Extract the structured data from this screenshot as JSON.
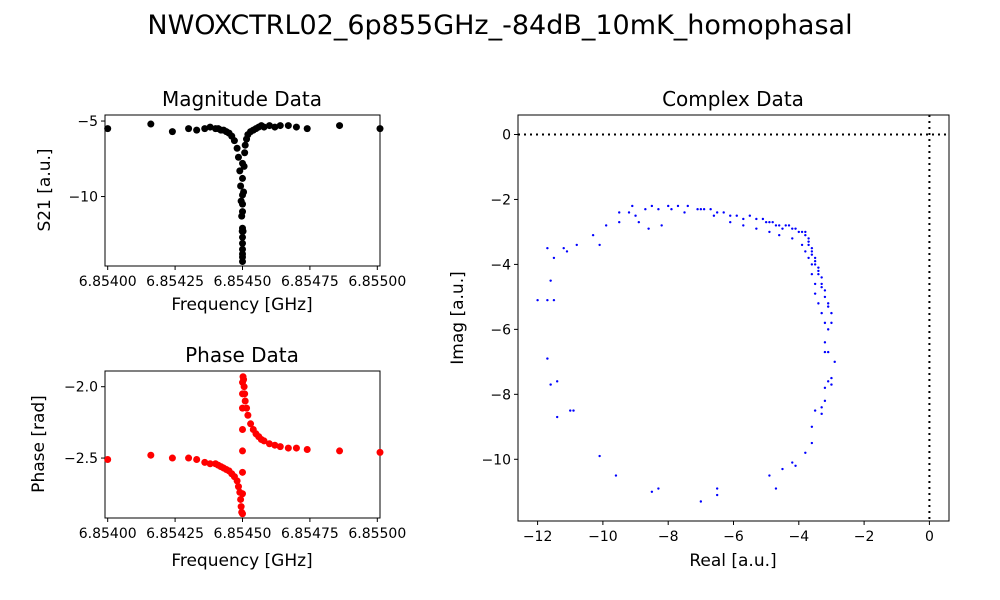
{
  "figure": {
    "title": "NWOXCTRL02_6p855GHz_-84dB_10mK_homophasal"
  },
  "chart_data": [
    {
      "type": "scatter",
      "title": "Magnitude Data",
      "xlabel": "Frequency [GHz]",
      "ylabel": "S21 [a.u.]",
      "color": "#000000",
      "xlim": [
        6.85399,
        6.85501
      ],
      "ylim": [
        -14.6,
        -4.6
      ],
      "xticks": [
        6.854,
        6.85425,
        6.8545,
        6.85475,
        6.855
      ],
      "xtick_labels": [
        "6.85400",
        "6.85425",
        "6.85450",
        "6.85475",
        "6.85500"
      ],
      "yticks": [
        -5,
        -10
      ],
      "ytick_labels": [
        "−5",
        "−10"
      ],
      "x": [
        6.854,
        6.85416,
        6.85424,
        6.8543,
        6.85433,
        6.85436,
        6.85438,
        6.8544,
        6.85441,
        6.85442,
        6.85443,
        6.85444,
        6.85445,
        6.85446,
        6.85447,
        6.85448,
        6.854485,
        6.85449,
        6.854493,
        6.854495,
        6.854497,
        6.854499,
        6.8545,
        6.8545,
        6.8545,
        6.8545,
        6.8545,
        6.8545,
        6.8545,
        6.8545,
        6.8545,
        6.8545,
        6.8545,
        6.8545,
        6.854502,
        6.854504,
        6.854506,
        6.854508,
        6.85451,
        6.854515,
        6.85452,
        6.85453,
        6.85454,
        6.85455,
        6.85456,
        6.85457,
        6.85458,
        6.8546,
        6.85462,
        6.85464,
        6.85467,
        6.8547,
        6.85474,
        6.85486,
        6.85501
      ],
      "y": [
        -5.5,
        -5.2,
        -5.7,
        -5.5,
        -5.6,
        -5.5,
        -5.4,
        -5.5,
        -5.5,
        -5.6,
        -5.6,
        -5.7,
        -5.8,
        -6.0,
        -6.3,
        -6.8,
        -7.4,
        -8.3,
        -9.3,
        -10.3,
        -11.3,
        -12.3,
        -13.5,
        -14.3,
        -14.0,
        -13.1,
        -12.1,
        -11.0,
        -9.9,
        -8.8,
        -7.8,
        -10.5,
        -12.7,
        -13.8,
        -12.3,
        -9.7,
        -8.0,
        -7.1,
        -6.6,
        -6.2,
        -5.9,
        -5.7,
        -5.6,
        -5.5,
        -5.4,
        -5.3,
        -5.4,
        -5.3,
        -5.4,
        -5.3,
        -5.3,
        -5.4,
        -5.5,
        -5.3,
        -5.5
      ]
    },
    {
      "type": "scatter",
      "title": "Phase Data",
      "xlabel": "Frequency [GHz]",
      "ylabel": "Phase [rad]",
      "color": "#ff0000",
      "xlim": [
        6.85399,
        6.85501
      ],
      "ylim": [
        -2.92,
        -1.89
      ],
      "xticks": [
        6.854,
        6.85425,
        6.8545,
        6.85475,
        6.855
      ],
      "xtick_labels": [
        "6.85400",
        "6.85425",
        "6.85450",
        "6.85475",
        "6.85500"
      ],
      "yticks": [
        -2.0,
        -2.5
      ],
      "ytick_labels": [
        "−2.0",
        "−2.5"
      ],
      "x": [
        6.854,
        6.85416,
        6.85424,
        6.8543,
        6.85433,
        6.85436,
        6.85438,
        6.8544,
        6.85441,
        6.85442,
        6.85443,
        6.85444,
        6.85445,
        6.85446,
        6.85447,
        6.85448,
        6.854485,
        6.85449,
        6.854493,
        6.854495,
        6.854497,
        6.8545,
        6.8545,
        6.8545,
        6.8545,
        6.8545,
        6.8545,
        6.8545,
        6.8545,
        6.854502,
        6.854504,
        6.854506,
        6.854508,
        6.85451,
        6.854515,
        6.85452,
        6.85453,
        6.85454,
        6.85455,
        6.85456,
        6.85457,
        6.85458,
        6.8546,
        6.85462,
        6.85464,
        6.85467,
        6.8547,
        6.85474,
        6.85486,
        6.85501
      ],
      "y": [
        -2.51,
        -2.48,
        -2.5,
        -2.5,
        -2.51,
        -2.53,
        -2.54,
        -2.54,
        -2.55,
        -2.56,
        -2.57,
        -2.58,
        -2.59,
        -2.61,
        -2.63,
        -2.66,
        -2.7,
        -2.74,
        -2.79,
        -2.84,
        -2.88,
        -2.89,
        -2.75,
        -2.6,
        -2.45,
        -2.3,
        -2.15,
        -2.05,
        -1.97,
        -1.93,
        -1.95,
        -2.0,
        -2.05,
        -2.1,
        -2.15,
        -2.2,
        -2.26,
        -2.3,
        -2.33,
        -2.35,
        -2.37,
        -2.38,
        -2.4,
        -2.41,
        -2.42,
        -2.43,
        -2.43,
        -2.44,
        -2.45,
        -2.46
      ]
    },
    {
      "type": "scatter",
      "title": "Complex Data",
      "xlabel": "Real [a.u.]",
      "ylabel": "Imag [a.u.]",
      "color": "#0000ff",
      "xlim": [
        -12.6,
        0.6
      ],
      "ylim": [
        -11.9,
        0.6
      ],
      "xticks": [
        -12,
        -10,
        -8,
        -6,
        -4,
        -2,
        0
      ],
      "xtick_labels": [
        "−12",
        "−10",
        "−8",
        "−6",
        "−4",
        "−2",
        "0"
      ],
      "yticks": [
        0,
        -2,
        -4,
        -6,
        -8,
        -10
      ],
      "ytick_labels": [
        "0",
        "−2",
        "−4",
        "−6",
        "−8",
        "−10"
      ],
      "reference_lines": {
        "x": 0,
        "y": 0,
        "style": "dotted"
      },
      "x": [
        -12.0,
        -11.7,
        -11.7,
        -11.6,
        -11.5,
        -11.4,
        -11.4,
        -11.1,
        -10.9,
        -10.1,
        -9.5,
        -8.5,
        -8.3,
        -7.0,
        -6.5,
        -6.5,
        -4.9,
        -4.7,
        -4.5,
        -4.2,
        -4.1,
        -3.8,
        -3.6,
        -3.6,
        -3.5,
        -3.3,
        -3.3,
        -3.2,
        -3.2,
        -3.1,
        -3.0,
        -3.0,
        -2.9,
        -3.1,
        -3.2,
        -3.2,
        -3.1,
        -3.0,
        -3.0,
        -3.1,
        -3.1,
        -3.2,
        -3.2,
        -3.3,
        -3.3,
        -3.3,
        -3.4,
        -3.4,
        -3.4,
        -3.5,
        -3.5,
        -3.5,
        -3.6,
        -3.6,
        -3.6,
        -3.7,
        -3.7,
        -3.7,
        -3.8,
        -3.8,
        -3.9,
        -4.0,
        -4.1,
        -4.2,
        -4.3,
        -4.4,
        -4.5,
        -4.6,
        -4.7,
        -4.8,
        -4.9,
        -5.0,
        -5.1,
        -5.3,
        -5.5,
        -5.7,
        -5.9,
        -6.1,
        -6.3,
        -6.5,
        -6.7,
        -6.9,
        -7.1,
        -7.4,
        -7.7,
        -8.0,
        -8.3,
        -8.5,
        -8.7,
        -9.0,
        -9.2,
        -9.5,
        -9.9,
        -10.3,
        -10.8,
        -11.2,
        -11.5,
        -11.7,
        -11.6,
        -11.0,
        -10.1,
        -9.6,
        -9.1,
        -8.9,
        -8.6,
        -8.2,
        -7.9,
        -7.5,
        -7.0,
        -6.6,
        -6.1,
        -5.7,
        -5.3,
        -4.9,
        -4.6,
        -4.2,
        -3.9,
        -3.8,
        -3.7,
        -3.6,
        -3.6,
        -3.5,
        -3.5,
        -3.4,
        -3.3,
        -3.2
      ],
      "y": [
        -5.1,
        -5.1,
        -3.5,
        -4.5,
        -3.8,
        -8.7,
        -7.6,
        -3.6,
        -8.5,
        -3.4,
        -2.7,
        -11.0,
        -10.9,
        -11.3,
        -10.9,
        -11.1,
        -10.5,
        -10.9,
        -10.3,
        -10.1,
        -10.2,
        -9.8,
        -9.5,
        -9.0,
        -8.5,
        -8.6,
        -8.4,
        -8.2,
        -7.8,
        -7.6,
        -7.7,
        -7.5,
        -7.0,
        -6.7,
        -6.7,
        -6.4,
        -6.0,
        -5.8,
        -5.5,
        -5.3,
        -5.2,
        -5.0,
        -4.8,
        -4.7,
        -4.6,
        -4.4,
        -4.3,
        -4.2,
        -4.1,
        -4.0,
        -3.9,
        -3.8,
        -3.7,
        -3.6,
        -3.5,
        -3.4,
        -3.3,
        -3.2,
        -3.1,
        -3.0,
        -3.0,
        -3.0,
        -2.9,
        -2.9,
        -2.8,
        -2.8,
        -2.9,
        -2.8,
        -2.8,
        -2.7,
        -2.7,
        -2.7,
        -2.6,
        -2.6,
        -2.5,
        -2.6,
        -2.5,
        -2.5,
        -2.4,
        -2.4,
        -2.3,
        -2.3,
        -2.3,
        -2.2,
        -2.2,
        -2.2,
        -2.3,
        -2.2,
        -2.3,
        -2.5,
        -2.4,
        -2.4,
        -2.8,
        -3.1,
        -3.4,
        -3.5,
        -5.1,
        -6.9,
        -7.7,
        -8.5,
        -9.9,
        -10.5,
        -2.2,
        -2.7,
        -2.9,
        -2.8,
        -2.3,
        -2.4,
        -2.3,
        -2.5,
        -2.7,
        -2.8,
        -2.9,
        -3.0,
        -3.1,
        -3.2,
        -3.4,
        -3.6,
        -3.8,
        -4.0,
        -4.3,
        -4.6,
        -4.9,
        -5.2,
        -5.5,
        -5.8
      ]
    }
  ]
}
